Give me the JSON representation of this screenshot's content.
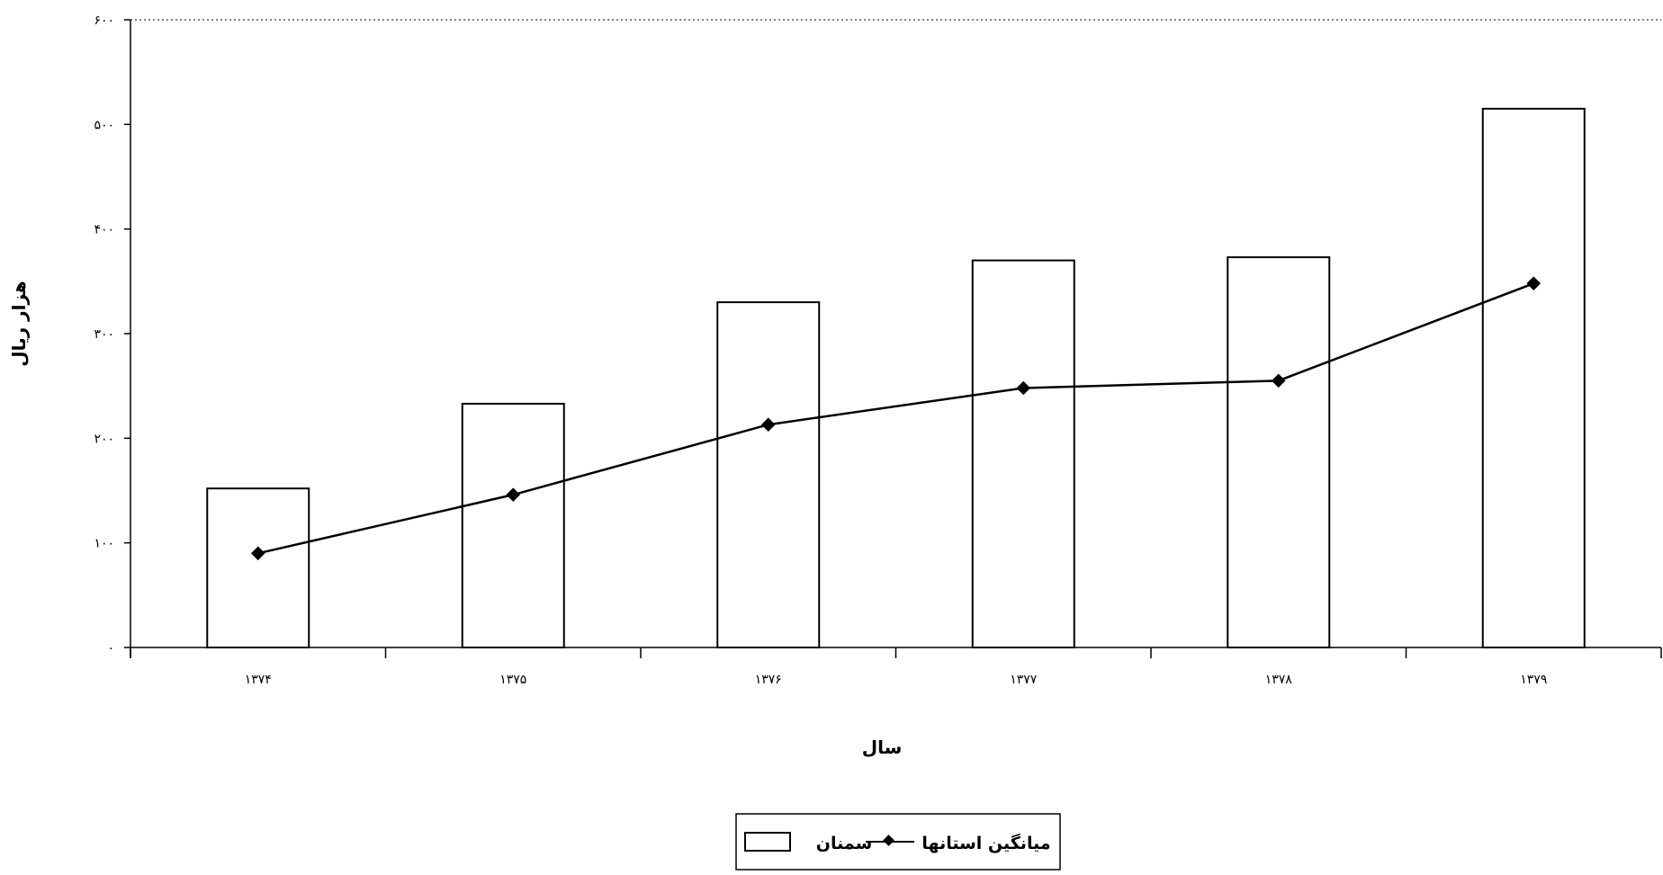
{
  "chart_data": {
    "type": "bar",
    "categories": [
      "۱۳۷۴",
      "۱۳۷۵",
      "۱۳۷۶",
      "۱۳۷۷",
      "۱۳۷۸",
      "۱۳۷۹"
    ],
    "series": [
      {
        "name": "سمنان",
        "type": "bar",
        "values": [
          152,
          233,
          330,
          370,
          373,
          515
        ]
      },
      {
        "name": "میانگین استانها",
        "type": "line",
        "values": [
          90,
          146,
          213,
          248,
          255,
          348
        ]
      }
    ],
    "title": "",
    "xlabel": "سال",
    "ylabel": "هزار ریال",
    "ylim": [
      0,
      600
    ],
    "yticks": [
      0,
      100,
      200,
      300,
      400,
      500,
      600
    ],
    "ytick_labels": [
      "۰",
      "۱۰۰",
      "۲۰۰",
      "۳۰۰",
      "۴۰۰",
      "۵۰۰",
      "۶۰۰"
    ],
    "grid": false,
    "legend": "bottom-center",
    "colors": {
      "bar_fill": "#ffffff",
      "stroke": "#000000"
    }
  }
}
